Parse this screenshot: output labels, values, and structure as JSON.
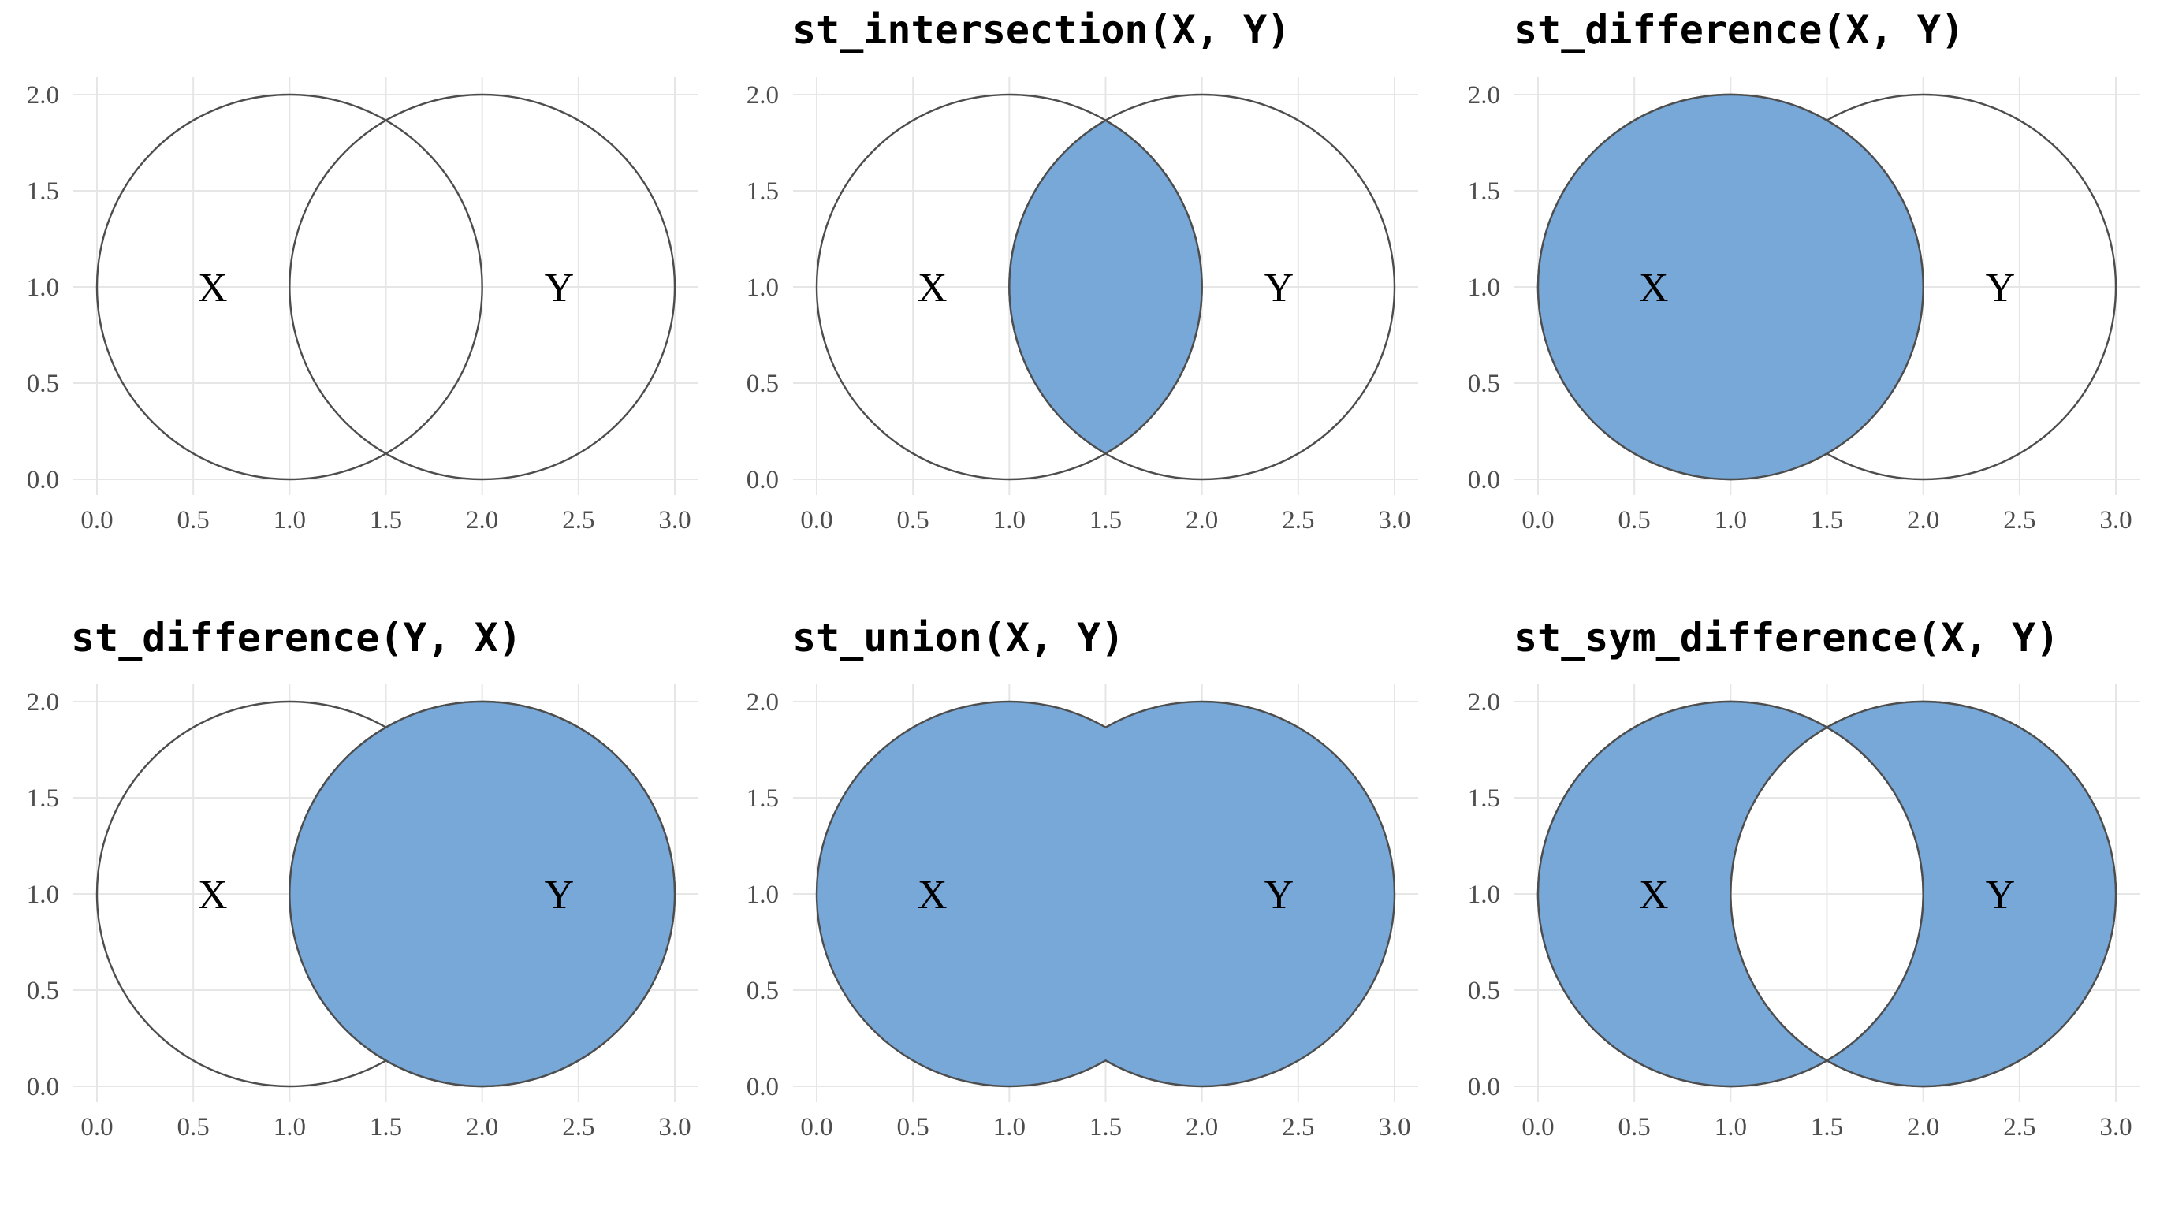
{
  "fill_color": "#77a8d8",
  "outline_color": "#4d4d4d",
  "grid_color": "#e6e6e6",
  "chart_data": [
    {
      "type": "other",
      "geometry": "circles",
      "title": "",
      "operation": "none",
      "circles": [
        {
          "name": "X",
          "cx": 1,
          "cy": 1,
          "r": 1
        },
        {
          "name": "Y",
          "cx": 2,
          "cy": 1,
          "r": 1
        }
      ],
      "labels": [
        {
          "text": "X",
          "x": 0.6,
          "y": 1.0
        },
        {
          "text": "Y",
          "x": 2.4,
          "y": 1.0
        }
      ],
      "xlim": [
        0,
        3
      ],
      "ylim": [
        0,
        2
      ],
      "x_ticks": [
        "0.0",
        "0.5",
        "1.0",
        "1.5",
        "2.0",
        "2.5",
        "3.0"
      ],
      "y_ticks": [
        "0.0",
        "0.5",
        "1.0",
        "1.5",
        "2.0"
      ],
      "grid": true
    },
    {
      "type": "other",
      "geometry": "circles",
      "title": "st_intersection(X, Y)",
      "operation": "intersection",
      "circles": [
        {
          "name": "X",
          "cx": 1,
          "cy": 1,
          "r": 1
        },
        {
          "name": "Y",
          "cx": 2,
          "cy": 1,
          "r": 1
        }
      ],
      "labels": [
        {
          "text": "X",
          "x": 0.6,
          "y": 1.0
        },
        {
          "text": "Y",
          "x": 2.4,
          "y": 1.0
        }
      ],
      "xlim": [
        0,
        3
      ],
      "ylim": [
        0,
        2
      ],
      "x_ticks": [
        "0.0",
        "0.5",
        "1.0",
        "1.5",
        "2.0",
        "2.5",
        "3.0"
      ],
      "y_ticks": [
        "0.0",
        "0.5",
        "1.0",
        "1.5",
        "2.0"
      ],
      "grid": true
    },
    {
      "type": "other",
      "geometry": "circles",
      "title": "st_difference(X, Y)",
      "operation": "difference_xy",
      "circles": [
        {
          "name": "X",
          "cx": 1,
          "cy": 1,
          "r": 1
        },
        {
          "name": "Y",
          "cx": 2,
          "cy": 1,
          "r": 1
        }
      ],
      "labels": [
        {
          "text": "X",
          "x": 0.6,
          "y": 1.0
        },
        {
          "text": "Y",
          "x": 2.4,
          "y": 1.0
        }
      ],
      "xlim": [
        0,
        3
      ],
      "ylim": [
        0,
        2
      ],
      "x_ticks": [
        "0.0",
        "0.5",
        "1.0",
        "1.5",
        "2.0",
        "2.5",
        "3.0"
      ],
      "y_ticks": [
        "0.0",
        "0.5",
        "1.0",
        "1.5",
        "2.0"
      ],
      "grid": true
    },
    {
      "type": "other",
      "geometry": "circles",
      "title": "st_difference(Y, X)",
      "operation": "difference_yx",
      "circles": [
        {
          "name": "X",
          "cx": 1,
          "cy": 1,
          "r": 1
        },
        {
          "name": "Y",
          "cx": 2,
          "cy": 1,
          "r": 1
        }
      ],
      "labels": [
        {
          "text": "X",
          "x": 0.6,
          "y": 1.0
        },
        {
          "text": "Y",
          "x": 2.4,
          "y": 1.0
        }
      ],
      "xlim": [
        0,
        3
      ],
      "ylim": [
        0,
        2
      ],
      "x_ticks": [
        "0.0",
        "0.5",
        "1.0",
        "1.5",
        "2.0",
        "2.5",
        "3.0"
      ],
      "y_ticks": [
        "0.0",
        "0.5",
        "1.0",
        "1.5",
        "2.0"
      ],
      "grid": true
    },
    {
      "type": "other",
      "geometry": "circles",
      "title": "st_union(X, Y)",
      "operation": "union",
      "circles": [
        {
          "name": "X",
          "cx": 1,
          "cy": 1,
          "r": 1
        },
        {
          "name": "Y",
          "cx": 2,
          "cy": 1,
          "r": 1
        }
      ],
      "labels": [
        {
          "text": "X",
          "x": 0.6,
          "y": 1.0
        },
        {
          "text": "Y",
          "x": 2.4,
          "y": 1.0
        }
      ],
      "xlim": [
        0,
        3
      ],
      "ylim": [
        0,
        2
      ],
      "x_ticks": [
        "0.0",
        "0.5",
        "1.0",
        "1.5",
        "2.0",
        "2.5",
        "3.0"
      ],
      "y_ticks": [
        "0.0",
        "0.5",
        "1.0",
        "1.5",
        "2.0"
      ],
      "grid": true
    },
    {
      "type": "other",
      "geometry": "circles",
      "title": "st_sym_difference(X, Y)",
      "operation": "sym_difference",
      "circles": [
        {
          "name": "X",
          "cx": 1,
          "cy": 1,
          "r": 1
        },
        {
          "name": "Y",
          "cx": 2,
          "cy": 1,
          "r": 1
        }
      ],
      "labels": [
        {
          "text": "X",
          "x": 0.6,
          "y": 1.0
        },
        {
          "text": "Y",
          "x": 2.4,
          "y": 1.0
        }
      ],
      "xlim": [
        0,
        3
      ],
      "ylim": [
        0,
        2
      ],
      "x_ticks": [
        "0.0",
        "0.5",
        "1.0",
        "1.5",
        "2.0",
        "2.5",
        "3.0"
      ],
      "y_ticks": [
        "0.0",
        "0.5",
        "1.0",
        "1.5",
        "2.0"
      ],
      "grid": true
    }
  ]
}
